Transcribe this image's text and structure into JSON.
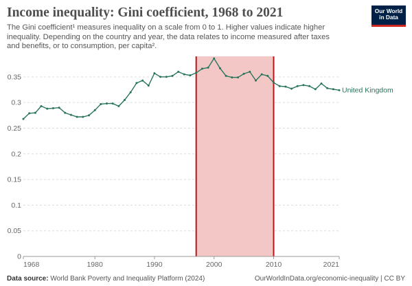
{
  "header": {
    "title": "Income inequality: Gini coefficient, 1968 to 2021",
    "subtitle": "The Gini coefficient¹ measures inequality on a scale from 0 to 1. Higher values indicate higher inequality. Depending on the country and year, the data relates to income measured after taxes and benefits, or to consumption, per capita².",
    "logo_line1": "Our World",
    "logo_line2": "in Data"
  },
  "footer": {
    "source_label": "Data source:",
    "source_text": "World Bank Poverty and Inequality Platform (2024)",
    "right_text": "OurWorldInData.org/economic-inequality | CC BY"
  },
  "colors": {
    "series": "#28755b",
    "highlight_fill": "#f4c7c7",
    "highlight_border": "#b8161b",
    "grid": "#dddddd"
  },
  "chart_data": {
    "type": "line",
    "title": "Income inequality: Gini coefficient, 1968 to 2021",
    "xlabel": "",
    "ylabel": "",
    "xlim": [
      1968,
      2021
    ],
    "ylim": [
      0,
      0.39
    ],
    "x_ticks": [
      1968,
      1980,
      1990,
      2000,
      2010,
      2021
    ],
    "y_ticks": [
      0,
      0.05,
      0.1,
      0.15,
      0.2,
      0.25,
      0.3,
      0.35
    ],
    "y_tick_labels": [
      "0",
      "0.05",
      "0.1",
      "0.15",
      "0.2",
      "0.25",
      "0.3",
      "0.35"
    ],
    "grid": "horizontal dashed",
    "highlight_range": [
      1997,
      2010
    ],
    "series": [
      {
        "name": "United Kingdom",
        "x": [
          1968,
          1969,
          1970,
          1971,
          1972,
          1973,
          1974,
          1975,
          1976,
          1977,
          1978,
          1979,
          1980,
          1981,
          1982,
          1983,
          1984,
          1985,
          1986,
          1987,
          1988,
          1989,
          1990,
          1991,
          1992,
          1993,
          1994,
          1995,
          1996,
          1997,
          1998,
          1999,
          2000,
          2001,
          2002,
          2003,
          2004,
          2005,
          2006,
          2007,
          2008,
          2009,
          2010,
          2011,
          2012,
          2013,
          2014,
          2015,
          2016,
          2017,
          2018,
          2019,
          2020,
          2021
        ],
        "values": [
          0.268,
          0.279,
          0.28,
          0.293,
          0.288,
          0.289,
          0.29,
          0.28,
          0.276,
          0.272,
          0.272,
          0.275,
          0.285,
          0.297,
          0.298,
          0.298,
          0.293,
          0.305,
          0.32,
          0.338,
          0.343,
          0.333,
          0.357,
          0.35,
          0.35,
          0.352,
          0.36,
          0.355,
          0.353,
          0.358,
          0.366,
          0.368,
          0.386,
          0.367,
          0.352,
          0.349,
          0.349,
          0.356,
          0.36,
          0.343,
          0.355,
          0.352,
          0.339,
          0.332,
          0.331,
          0.327,
          0.332,
          0.334,
          0.332,
          0.326,
          0.337,
          0.328,
          0.326,
          0.324
        ]
      }
    ]
  }
}
